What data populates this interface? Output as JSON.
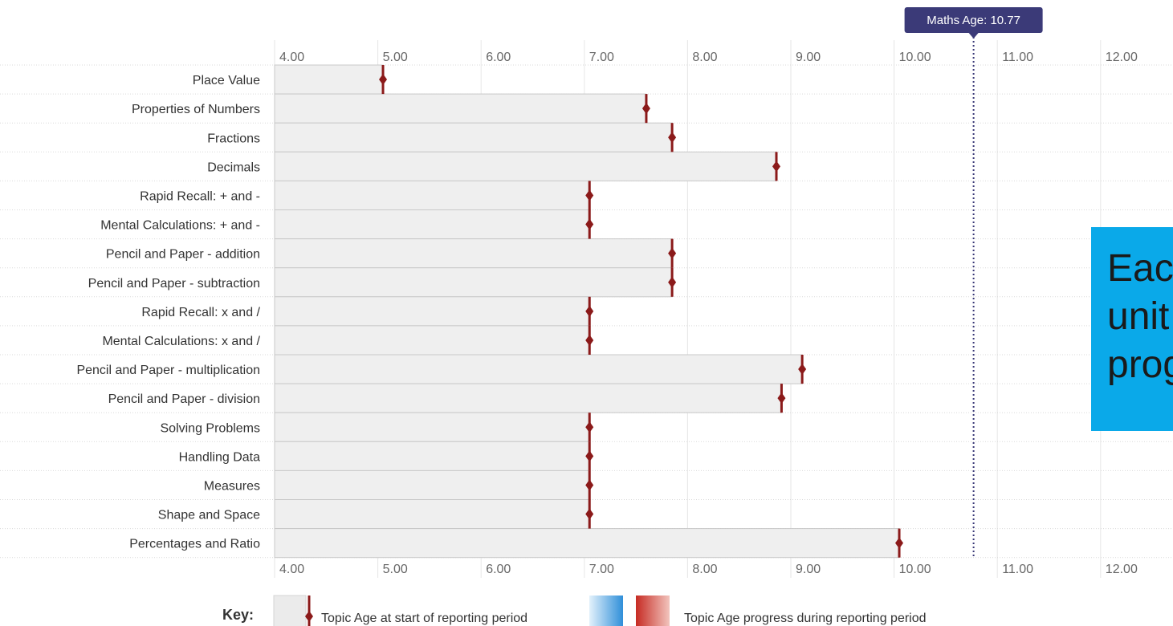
{
  "chart_data": {
    "type": "bar",
    "orientation": "horizontal",
    "title": "",
    "xlabel": "",
    "ylabel": "",
    "xlim": [
      4,
      12
    ],
    "x_ticks": [
      "4.00",
      "5.00",
      "6.00",
      "7.00",
      "8.00",
      "9.00",
      "10.00",
      "11.00",
      "12.00"
    ],
    "grid": true,
    "categories": [
      "Place Value",
      "Properties of Numbers",
      "Fractions",
      "Decimals",
      "Rapid Recall: + and -",
      "Mental Calculations: + and -",
      "Pencil and Paper - addition",
      "Pencil and Paper - subtraction",
      "Rapid Recall: x and /",
      "Mental Calculations: x and /",
      "Pencil and Paper - multiplication",
      "Pencil and Paper - division",
      "Solving Problems",
      "Handling Data",
      "Measures",
      "Shape and Space",
      "Percentages and Ratio"
    ],
    "values": [
      5.05,
      7.6,
      7.85,
      8.86,
      7.05,
      7.05,
      7.85,
      7.85,
      7.05,
      7.05,
      9.11,
      8.91,
      7.05,
      7.05,
      7.05,
      7.05,
      10.05
    ],
    "reference_line": {
      "label": "Maths Age: 10.77",
      "value": 10.77
    },
    "key": {
      "title": "Key:",
      "start_label": "Topic Age at start of reporting period",
      "progress_label": "Topic Age progress during reporting period"
    }
  },
  "callout": {
    "text": "Each\nunit\nprogress"
  },
  "colors": {
    "bar_fill": "#efefef",
    "bar_stroke": "#c8c8c8",
    "marker": "#8b1a1a",
    "grid": "#e6e6e6",
    "badge": "#3b3a78",
    "reference_line": "#3b3a78",
    "callout_bg": "#0aa9e9"
  }
}
